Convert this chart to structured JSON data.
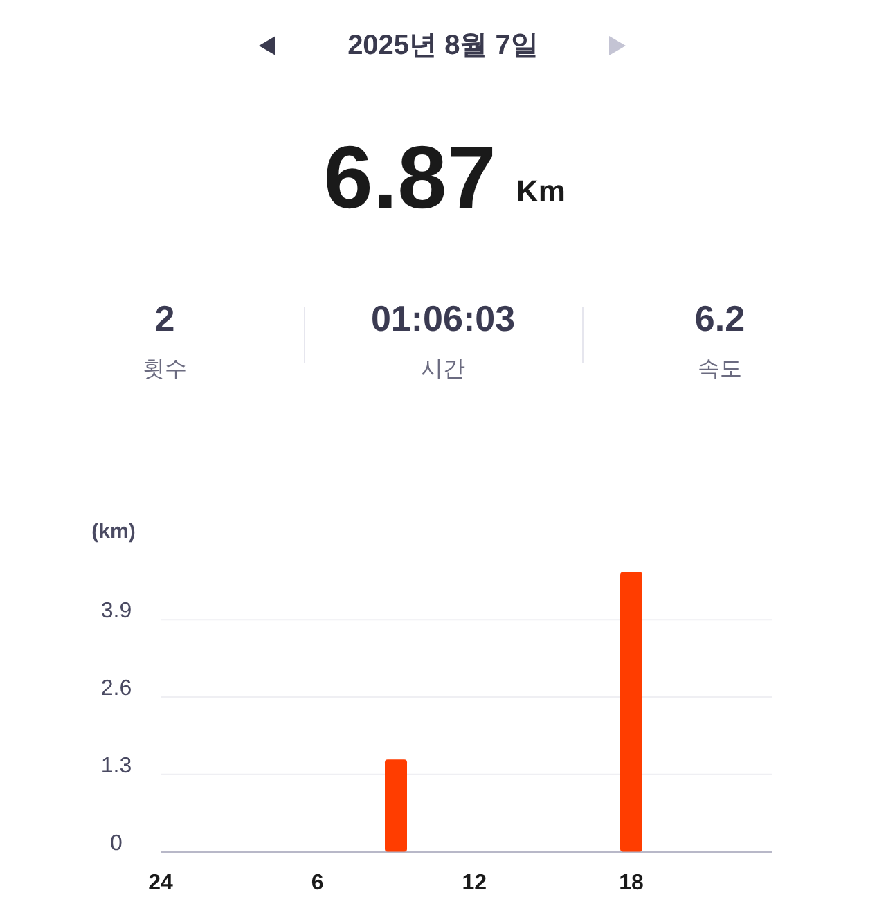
{
  "chart_data": {
    "type": "bar",
    "title": "2025년 8월 7일",
    "ylabel": "(km)",
    "annotations": [
      "6.87",
      "Km",
      "2",
      "횟수",
      "01:06:03",
      "시간",
      "6.2",
      "속도"
    ],
    "categories": [
      "24",
      null,
      null,
      null,
      null,
      null,
      "6",
      null,
      null,
      null,
      null,
      null,
      "12",
      null,
      null,
      null,
      null,
      null,
      "18",
      null,
      null,
      null,
      null,
      null
    ],
    "values": [
      null,
      null,
      null,
      null,
      null,
      null,
      null,
      null,
      null,
      1.55,
      null,
      null,
      null,
      null,
      null,
      null,
      null,
      null,
      4.7,
      null,
      null,
      null,
      null,
      null
    ],
    "color": "#ff3d00",
    "ylim": [
      0,
      4.7
    ],
    "yticks": [
      0,
      1.3,
      2.6,
      3.9
    ],
    "grid": "y"
  }
}
